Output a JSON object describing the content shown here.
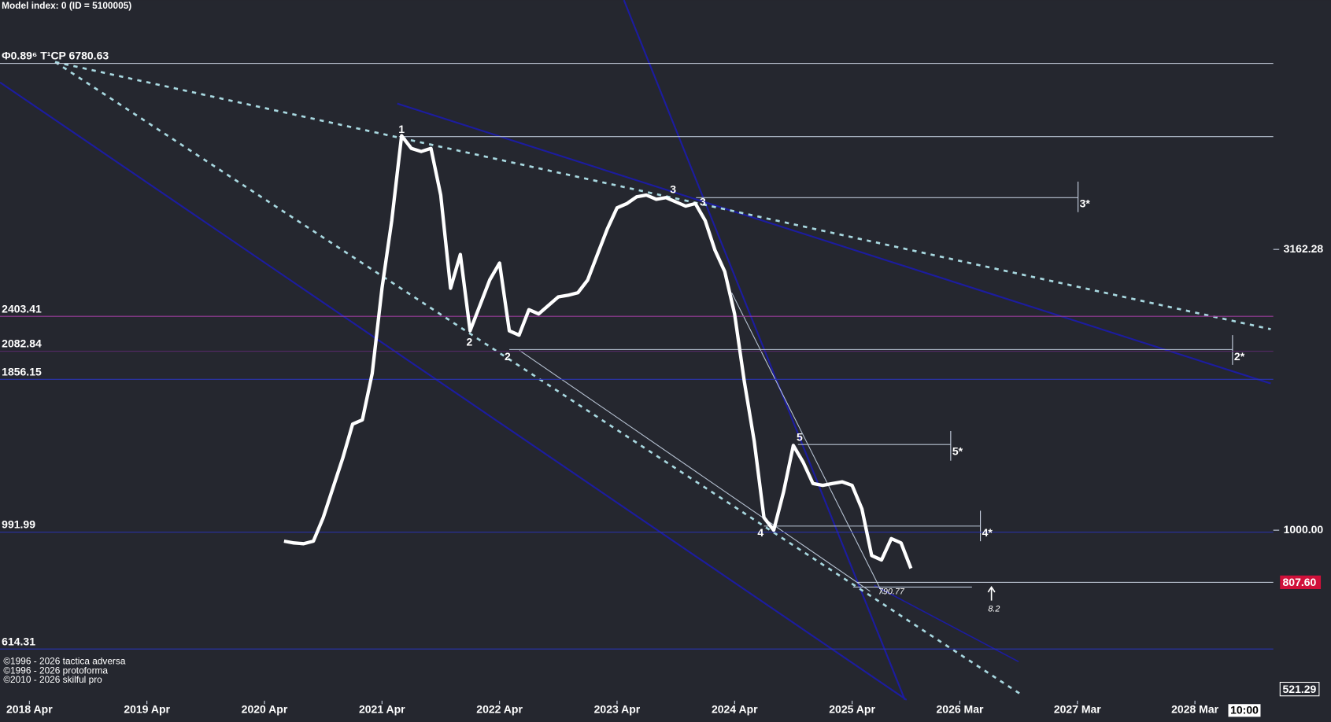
{
  "header": "Model index: 0  (ID = 5100005)",
  "footer": [
    "©1996 - 2026 tactica adversa",
    "©1996 - 2026 protoforma",
    "©2010 - 2026 skilful pro"
  ],
  "chart_data": {
    "type": "line",
    "log_scale": true,
    "color": "#ffffff",
    "x": [
      "2020-06",
      "2020-07",
      "2020-08",
      "2020-09",
      "2020-10",
      "2020-11",
      "2020-12",
      "2021-01",
      "2021-02",
      "2021-03",
      "2021-04",
      "2021-05",
      "2021-06",
      "2021-07",
      "2021-08",
      "2021-09",
      "2021-10",
      "2021-11",
      "2021-12",
      "2022-01",
      "2022-02",
      "2022-03",
      "2022-04",
      "2022-05",
      "2022-06",
      "2022-07",
      "2022-08",
      "2022-09",
      "2022-10",
      "2022-11",
      "2022-12",
      "2023-01",
      "2023-02",
      "2023-03",
      "2023-04",
      "2023-05",
      "2023-06",
      "2023-07",
      "2023-08",
      "2023-09",
      "2023-10",
      "2023-11",
      "2023-12",
      "2024-01",
      "2024-02",
      "2024-03",
      "2024-04",
      "2024-05",
      "2024-06",
      "2024-07",
      "2024-08",
      "2024-09",
      "2024-10",
      "2024-11",
      "2024-12",
      "2025-01",
      "2025-02",
      "2025-03",
      "2025-04",
      "2025-05",
      "2025-06",
      "2025-07",
      "2025-08",
      "2025-09",
      "2025-10"
    ],
    "values": [
      956,
      949,
      946,
      956,
      1053,
      1190,
      1344,
      1545,
      1572,
      1903,
      2696,
      3559,
      5040,
      4785,
      4725,
      4785,
      3951,
      2696,
      3097,
      2265,
      2514,
      2790,
      2991,
      2265,
      2225,
      2470,
      2427,
      2514,
      2603,
      2620,
      2648,
      2790,
      3097,
      3438,
      3750,
      3816,
      3924,
      3951,
      3884,
      3910,
      3843,
      3777,
      3816,
      3559,
      3152,
      2888,
      2427,
      1838,
      1441,
      1053,
      1000,
      1170,
      1416,
      1321,
      1211,
      1202,
      1211,
      1219,
      1202,
      1091,
      901,
      885,
      966,
      949,
      855
    ],
    "xlim": [
      "2018-01",
      "2028-11"
    ],
    "xticks": [
      {
        "value": "2018-04",
        "label": "2018 Apr"
      },
      {
        "value": "2019-04",
        "label": "2019 Apr"
      },
      {
        "value": "2020-04",
        "label": "2020 Apr"
      },
      {
        "value": "2021-04",
        "label": "2021 Apr"
      },
      {
        "value": "2022-04",
        "label": "2022 Apr"
      },
      {
        "value": "2023-04",
        "label": "2023 Apr"
      },
      {
        "value": "2024-04",
        "label": "2024 Apr"
      },
      {
        "value": "2025-04",
        "label": "2025 Apr"
      },
      {
        "value": "2026-03",
        "label": "2026 Mar"
      },
      {
        "value": "2027-03",
        "label": "2027 Mar"
      },
      {
        "value": "2028-03",
        "label": "2028 Mar"
      }
    ],
    "ylim": [
      497,
      8790
    ],
    "yticks": [
      {
        "value": 1000,
        "label": "1000.00"
      },
      3162.28
    ],
    "levels": [
      {
        "value": 6780.63,
        "label": "Φ0.89⁶ T¹CP  6780.63",
        "color": "#cfd8e8"
      },
      {
        "value": 2403.41,
        "label": "2403.41",
        "color": "#9a3d9a"
      },
      {
        "value": 2082.84,
        "label": "2082.84",
        "color": "#5b2a6e"
      },
      {
        "value": 1856.15,
        "label": "1856.15",
        "color": "#2a34b0"
      },
      {
        "value": 991.99,
        "label": "991.99",
        "color": "#2a34b0"
      },
      {
        "value": 614.31,
        "label": "614.31",
        "color": "#2a34b0"
      }
    ],
    "guides": [
      5022,
      3910,
      2098,
      1421,
      1017,
      792
    ],
    "last_price": {
      "value": 807.6,
      "label": "807.60",
      "color": "#d0103a"
    },
    "bottom_price": 521.29,
    "annotations": [
      "1",
      "2",
      "2",
      "3",
      "3",
      "4",
      "5",
      "3*",
      "2*",
      "5*",
      "4*",
      "790.77",
      "8.2"
    ],
    "time_label": "10:00"
  }
}
